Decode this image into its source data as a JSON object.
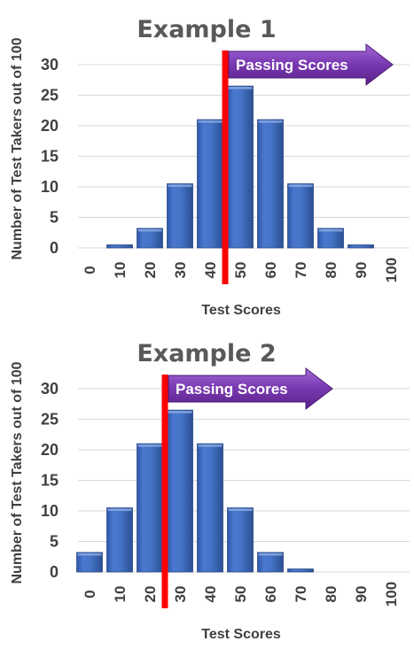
{
  "chart_data": [
    {
      "type": "bar",
      "title": "Example 1",
      "xlabel": "Test Scores",
      "ylabel": "Number of Test Takers out of 100",
      "categories": [
        "0",
        "10",
        "20",
        "30",
        "40",
        "50",
        "60",
        "70",
        "80",
        "90",
        "100"
      ],
      "values": [
        0,
        0.5,
        3.2,
        10.5,
        21,
        26.5,
        21,
        10.5,
        3.2,
        0.5,
        0
      ],
      "ylim": [
        0,
        30
      ],
      "yticks": [
        "0",
        "5",
        "10",
        "15",
        "20",
        "25",
        "30"
      ],
      "grid": true,
      "cutoff_score": 45,
      "arrow_label": "Passing Scores",
      "colors": {
        "bar": "#4472c4",
        "cutoff_line": "#ff0000",
        "arrow": "#7030a0"
      }
    },
    {
      "type": "bar",
      "title": "Example 2",
      "xlabel": "Test Scores",
      "ylabel": "Number of Test Takers out of 100",
      "categories": [
        "0",
        "10",
        "20",
        "30",
        "40",
        "50",
        "60",
        "70",
        "80",
        "90",
        "100"
      ],
      "values": [
        3.2,
        10.5,
        21,
        26.5,
        21,
        10.5,
        3.2,
        0.5,
        0,
        0,
        0
      ],
      "ylim": [
        0,
        30
      ],
      "yticks": [
        "0",
        "5",
        "10",
        "15",
        "20",
        "25",
        "30"
      ],
      "grid": true,
      "cutoff_score": 25,
      "arrow_label": "Passing Scores",
      "colors": {
        "bar": "#4472c4",
        "cutoff_line": "#ff0000",
        "arrow": "#7030a0"
      }
    }
  ]
}
